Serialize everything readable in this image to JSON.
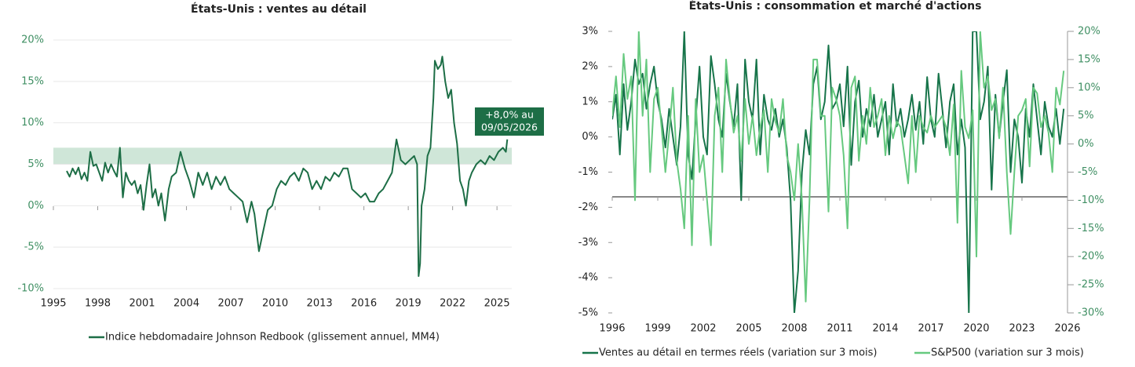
{
  "chart_data": [
    {
      "type": "line",
      "title": "États-Unis : ventes au détail",
      "x": [
        1995.9,
        1996.1,
        1996.3,
        1996.5,
        1996.7,
        1996.9,
        1997.1,
        1997.3,
        1997.5,
        1997.7,
        1997.9,
        1998.1,
        1998.3,
        1998.5,
        1998.7,
        1998.9,
        1999.1,
        1999.3,
        1999.5,
        1999.7,
        1999.9,
        2000.1,
        2000.3,
        2000.5,
        2000.7,
        2000.9,
        2001.1,
        2001.3,
        2001.5,
        2001.7,
        2001.9,
        2002.1,
        2002.3,
        2002.55,
        2002.8,
        2003.0,
        2003.3,
        2003.6,
        2003.9,
        2004.2,
        2004.5,
        2004.8,
        2005.1,
        2005.4,
        2005.7,
        2006.0,
        2006.3,
        2006.6,
        2006.9,
        2007.2,
        2007.5,
        2007.8,
        2008.1,
        2008.4,
        2008.6,
        2008.9,
        2009.2,
        2009.5,
        2009.8,
        2010.1,
        2010.4,
        2010.7,
        2011.0,
        2011.3,
        2011.6,
        2011.9,
        2012.2,
        2012.5,
        2012.8,
        2013.1,
        2013.4,
        2013.7,
        2014.0,
        2014.3,
        2014.6,
        2014.9,
        2015.2,
        2015.5,
        2015.8,
        2016.1,
        2016.4,
        2016.7,
        2017.0,
        2017.3,
        2017.6,
        2017.9,
        2018.2,
        2018.5,
        2018.8,
        2019.1,
        2019.4,
        2019.6,
        2019.7,
        2019.8,
        2019.9,
        2020.1,
        2020.3,
        2020.5,
        2020.7,
        2020.8,
        2021.0,
        2021.2,
        2021.3,
        2021.5,
        2021.7,
        2021.9,
        2022.1,
        2022.3,
        2022.5,
        2022.7,
        2022.9,
        2023.1,
        2023.3,
        2023.6,
        2023.9,
        2024.2,
        2024.5,
        2024.8,
        2025.1,
        2025.4,
        2025.6,
        2025.7
      ],
      "series": [
        {
          "name": "Indice hebdomadaire Johnson Redbook (glissement annuel, MM4)",
          "color": "#1d6e46",
          "values": [
            4.2,
            3.5,
            4.5,
            3.8,
            4.6,
            3.2,
            4.0,
            3.0,
            6.5,
            4.8,
            5.0,
            4.0,
            3.0,
            5.2,
            4.0,
            5.0,
            4.2,
            3.5,
            7.0,
            1.0,
            4.0,
            3.0,
            2.5,
            3.0,
            1.5,
            2.5,
            -0.5,
            2.5,
            5.0,
            1.0,
            2.0,
            0.0,
            1.5,
            -1.8,
            2.0,
            3.5,
            4.0,
            6.5,
            4.5,
            3.0,
            1.0,
            4.0,
            2.5,
            4.0,
            2.0,
            3.5,
            2.5,
            3.5,
            2.0,
            1.5,
            1.0,
            0.5,
            -2.0,
            0.5,
            -1.0,
            -5.5,
            -3.0,
            -0.5,
            0.0,
            2.0,
            3.0,
            2.5,
            3.5,
            4.0,
            3.0,
            4.5,
            4.0,
            2.0,
            3.0,
            2.0,
            3.5,
            3.0,
            4.0,
            3.5,
            4.5,
            4.5,
            2.0,
            1.5,
            1.0,
            1.5,
            0.5,
            0.5,
            1.5,
            2.0,
            3.0,
            4.0,
            8.0,
            5.5,
            5.0,
            5.5,
            6.0,
            5.0,
            -8.5,
            -7.0,
            0.0,
            2.0,
            6.0,
            7.0,
            13.0,
            17.5,
            16.5,
            17.0,
            18.0,
            15.0,
            13.0,
            14.0,
            10.0,
            7.5,
            3.0,
            2.0,
            0.0,
            3.0,
            4.0,
            5.0,
            5.5,
            5.0,
            6.0,
            5.5,
            6.5,
            7.0,
            6.5,
            8.0
          ]
        }
      ],
      "band": [
        5,
        7
      ],
      "band_color": "#cfe6d8",
      "annotation": {
        "lines": [
          "+8,0% au",
          "09/05/2026"
        ],
        "color": "#1d6e46"
      },
      "xlim": [
        1995,
        2026
      ],
      "xticks": [
        1995,
        1998,
        2001,
        2004,
        2007,
        2010,
        2013,
        2016,
        2019,
        2022,
        2025
      ],
      "ylim": [
        -10,
        20
      ],
      "yticks": [
        {
          "value": -10,
          "label": "-10%"
        },
        {
          "value": -5,
          "label": "-5%"
        },
        {
          "value": 0,
          "label": "0%"
        },
        {
          "value": 5,
          "label": "5%"
        },
        {
          "value": 10,
          "label": "10%"
        },
        {
          "value": 15,
          "label": "15%"
        },
        {
          "value": 20,
          "label": "20%"
        }
      ],
      "grid": true
    },
    {
      "type": "line",
      "title": "États-Unis : consommation et marché d'actions",
      "x": [
        1996,
        1996.25,
        1996.5,
        1996.75,
        1997,
        1997.25,
        1997.5,
        1997.75,
        1998,
        1998.25,
        1998.5,
        1998.75,
        1999,
        1999.25,
        1999.5,
        1999.75,
        2000,
        2000.25,
        2000.5,
        2000.75,
        2001,
        2001.25,
        2001.5,
        2001.75,
        2002,
        2002.25,
        2002.5,
        2002.75,
        2003,
        2003.25,
        2003.5,
        2003.75,
        2004,
        2004.25,
        2004.5,
        2004.75,
        2005,
        2005.25,
        2005.5,
        2005.75,
        2006,
        2006.25,
        2006.5,
        2006.75,
        2007,
        2007.25,
        2007.5,
        2007.75,
        2008,
        2008.25,
        2008.5,
        2008.75,
        2009,
        2009.25,
        2009.5,
        2009.75,
        2010,
        2010.25,
        2010.5,
        2010.75,
        2011,
        2011.25,
        2011.5,
        2011.75,
        2012,
        2012.25,
        2012.5,
        2012.75,
        2013,
        2013.25,
        2013.5,
        2013.75,
        2014,
        2014.25,
        2014.5,
        2014.75,
        2015,
        2015.25,
        2015.5,
        2015.75,
        2016,
        2016.25,
        2016.5,
        2016.75,
        2017,
        2017.25,
        2017.5,
        2017.75,
        2018,
        2018.25,
        2018.5,
        2018.75,
        2019,
        2019.25,
        2019.5,
        2019.75,
        2020,
        2020.25,
        2020.5,
        2020.75,
        2021,
        2021.25,
        2021.5,
        2021.75,
        2022,
        2022.25,
        2022.5,
        2022.75,
        2023,
        2023.25,
        2023.5,
        2023.75,
        2024,
        2024.25,
        2024.5,
        2024.75,
        2025,
        2025.25,
        2025.5,
        2025.75
      ],
      "series": [
        {
          "name": "Ventes au détail en termes réels (variation sur 3 mois)",
          "color": "#17744a",
          "axis": "y",
          "values": [
            0.5,
            1.2,
            -0.5,
            1.5,
            0.2,
            1.0,
            2.2,
            1.5,
            1.8,
            0.8,
            1.5,
            2.0,
            1.0,
            0.5,
            -0.3,
            0.8,
            0.0,
            -0.8,
            0.3,
            3.0,
            -0.5,
            -1.2,
            0.5,
            2.0,
            0.0,
            -0.5,
            2.3,
            1.5,
            0.5,
            0.0,
            1.8,
            1.0,
            0.3,
            1.5,
            -1.8,
            2.2,
            1.0,
            0.5,
            2.2,
            -0.5,
            1.2,
            0.5,
            0.2,
            0.8,
            0.0,
            0.5,
            -0.3,
            -1.8,
            -5.0,
            -3.8,
            -1.0,
            0.2,
            -0.5,
            1.5,
            2.0,
            0.5,
            1.0,
            2.6,
            0.8,
            1.0,
            1.5,
            0.3,
            2.0,
            -0.8,
            1.0,
            1.6,
            0.0,
            0.8,
            0.3,
            1.2,
            0.0,
            0.5,
            1.0,
            -0.5,
            1.5,
            0.3,
            0.8,
            0.0,
            0.5,
            1.2,
            0.2,
            1.0,
            -0.2,
            1.7,
            0.5,
            0.0,
            1.8,
            0.8,
            -0.3,
            1.0,
            1.5,
            -0.5,
            0.5,
            -0.3,
            -5.0,
            3.0,
            3.0,
            0.5,
            1.0,
            2.0,
            -1.5,
            1.2,
            0.0,
            1.0,
            1.9,
            -1.0,
            0.5,
            0.0,
            -1.3,
            0.8,
            0.0,
            1.5,
            0.5,
            -0.5,
            1.0,
            0.3,
            0.0,
            0.8,
            -0.2,
            0.8
          ]
        },
        {
          "name": "S&P500 (variation sur 3 mois)",
          "color": "#66c97f",
          "axis": "y2",
          "values": [
            5,
            12,
            3,
            16,
            8,
            12,
            -10,
            20,
            5,
            15,
            -5,
            8,
            10,
            3,
            -5,
            2,
            10,
            -3,
            -8,
            -15,
            5,
            -18,
            8,
            -5,
            -2,
            -10,
            -18,
            5,
            10,
            -5,
            15,
            8,
            2,
            5,
            -3,
            8,
            0,
            5,
            -2,
            3,
            6,
            -5,
            8,
            4,
            2,
            8,
            -2,
            -5,
            -10,
            0,
            -10,
            -28,
            -10,
            15,
            15,
            5,
            5,
            -12,
            10,
            8,
            5,
            -2,
            -15,
            10,
            12,
            -3,
            5,
            0,
            10,
            3,
            5,
            8,
            -2,
            5,
            1,
            4,
            3,
            -2,
            -7,
            5,
            -5,
            5,
            3,
            2,
            5,
            3,
            4,
            5,
            3,
            -2,
            7,
            -14,
            13,
            3,
            1,
            6,
            -20,
            20,
            10,
            12,
            6,
            8,
            1,
            10,
            -5,
            -16,
            -5,
            5,
            6,
            8,
            -4,
            10,
            9,
            3,
            5,
            2,
            -5,
            10,
            7,
            13
          ]
        }
      ],
      "xlim": [
        1996,
        2026
      ],
      "xticks": [
        1996,
        1999,
        2002,
        2005,
        2008,
        2011,
        2014,
        2017,
        2020,
        2023,
        2026
      ],
      "ylim": [
        -5,
        3
      ],
      "yticks": [
        {
          "value": -5,
          "label": "-5%"
        },
        {
          "value": -4,
          "label": "-4%"
        },
        {
          "value": -3,
          "label": "-3%"
        },
        {
          "value": -2,
          "label": "-2%"
        },
        {
          "value": -1,
          "label": "-1%"
        },
        {
          "value": 0,
          "label": "0%"
        },
        {
          "value": 1,
          "label": "1%"
        },
        {
          "value": 2,
          "label": "2%"
        },
        {
          "value": 3,
          "label": "3%"
        }
      ],
      "y2lim": [
        -30,
        20
      ],
      "y2ticks": [
        {
          "value": -30,
          "label": "-30%"
        },
        {
          "value": -25,
          "label": "-25%"
        },
        {
          "value": -20,
          "label": "-20%"
        },
        {
          "value": -15,
          "label": "-15%"
        },
        {
          "value": -10,
          "label": "-10%"
        },
        {
          "value": -5,
          "label": "-5%"
        },
        {
          "value": 0,
          "label": "0%"
        },
        {
          "value": 5,
          "label": "5%"
        },
        {
          "value": 10,
          "label": "10%"
        },
        {
          "value": 15,
          "label": "15%"
        },
        {
          "value": 20,
          "label": "20%"
        }
      ],
      "grid": false
    }
  ]
}
